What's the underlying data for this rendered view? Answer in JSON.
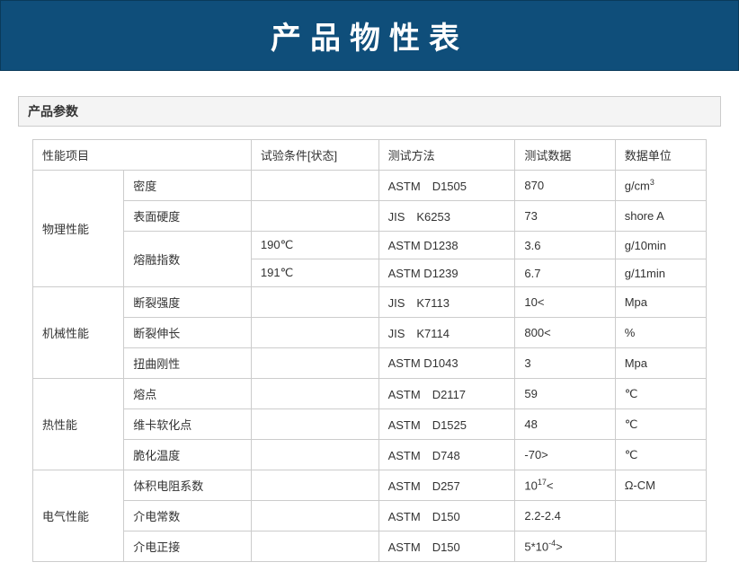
{
  "banner": {
    "title": "产品物性表"
  },
  "section": {
    "title": "产品参数"
  },
  "table": {
    "columns": [
      "性能项目",
      "试验条件[状态]",
      "测试方法",
      "测试数据",
      "数据单位"
    ],
    "groups": [
      {
        "category": "物理性能",
        "rows": [
          {
            "item": "密度",
            "cond": "",
            "method": "ASTM　D1505",
            "value": "870",
            "unit": "g/cm3"
          },
          {
            "item": "表面硬度",
            "cond": "",
            "method": "JIS　K6253",
            "value": "73",
            "unit": "shore A"
          },
          {
            "item": "熔融指数",
            "item_rowspan": 2,
            "cond": "190℃",
            "method": "ASTM D1238",
            "value": "3.6",
            "unit": "g/10min"
          },
          {
            "cond": "191℃",
            "method": "ASTM D1239",
            "value": "6.7",
            "unit": "g/11min"
          }
        ]
      },
      {
        "category": "机械性能",
        "rows": [
          {
            "item": "断裂强度",
            "cond": "",
            "method": "JIS　K7113",
            "value": "10<",
            "unit": "Mpa"
          },
          {
            "item": "断裂伸长",
            "cond": "",
            "method": "JIS　K7114",
            "value": "800<",
            "unit": "%"
          },
          {
            "item": "扭曲刚性",
            "cond": "",
            "method": "ASTM D1043",
            "value": "3",
            "unit": "Mpa"
          }
        ]
      },
      {
        "category": "热性能",
        "rows": [
          {
            "item": "熔点",
            "cond": "",
            "method": "ASTM　D2117",
            "value": "59",
            "unit": "℃"
          },
          {
            "item": "维卡软化点",
            "cond": "",
            "method": "ASTM　D1525",
            "value": "48",
            "unit": "℃"
          },
          {
            "item": "脆化温度",
            "cond": "",
            "method": "ASTM　D748",
            "value": "-70>",
            "unit": "℃"
          }
        ]
      },
      {
        "category": "电气性能",
        "rows": [
          {
            "item": "体积电阻系数",
            "cond": "",
            "method": "ASTM　D257",
            "value": "1017<",
            "unit": "Ω-CM"
          },
          {
            "item": "介电常数",
            "cond": "",
            "method": "ASTM　D150",
            "value": "2.2-2.4",
            "unit": ""
          },
          {
            "item": "介电正接",
            "cond": "",
            "method": "ASTM　D150",
            "value": "5*10-4>",
            "unit": ""
          }
        ]
      }
    ]
  }
}
